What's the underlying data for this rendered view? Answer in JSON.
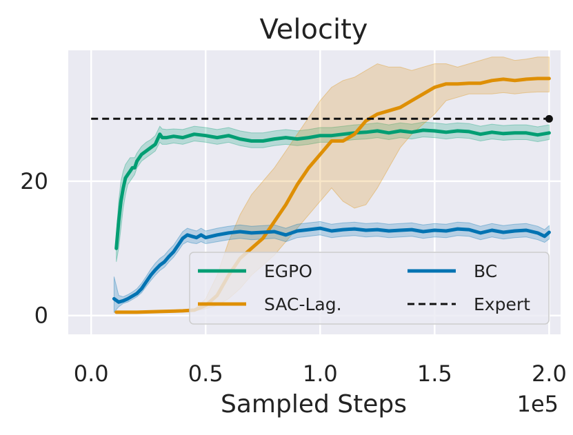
{
  "chart_data": {
    "type": "line",
    "title": "Velocity",
    "xlabel": "Sampled Steps",
    "ylabel": "",
    "x_offset_label": "1e5",
    "xlim": [
      -0.1,
      2.05
    ],
    "ylim": [
      -2.8,
      39.5
    ],
    "xticks": [
      0.0,
      0.5,
      1.0,
      1.5,
      2.0
    ],
    "xtick_labels": [
      "0.0",
      "0.5",
      "1.0",
      "1.5",
      "2.0"
    ],
    "yticks": [
      0,
      20
    ],
    "ytick_labels": [
      "0",
      "20"
    ],
    "grid": true,
    "legend": {
      "position": "lower-right",
      "columns": 2
    },
    "series": [
      {
        "name": "EGPO",
        "color": "#029e73",
        "style": "solid",
        "x": [
          0.11,
          0.12,
          0.13,
          0.14,
          0.15,
          0.16,
          0.17,
          0.18,
          0.19,
          0.2,
          0.22,
          0.24,
          0.26,
          0.28,
          0.3,
          0.31,
          0.33,
          0.36,
          0.4,
          0.45,
          0.5,
          0.55,
          0.6,
          0.65,
          0.7,
          0.75,
          0.8,
          0.85,
          0.9,
          0.95,
          1.0,
          1.05,
          1.1,
          1.15,
          1.2,
          1.25,
          1.3,
          1.35,
          1.4,
          1.45,
          1.5,
          1.55,
          1.6,
          1.65,
          1.7,
          1.75,
          1.8,
          1.85,
          1.9,
          1.95,
          2.0
        ],
        "y": [
          10,
          14,
          17,
          19,
          20.5,
          21,
          21.5,
          22,
          22,
          23,
          24,
          24.5,
          25,
          25.5,
          27,
          26.5,
          26.5,
          26.7,
          26.5,
          27,
          26.8,
          26.5,
          26.8,
          26.3,
          26,
          26,
          26.3,
          26.5,
          26.3,
          26.5,
          26.8,
          26.8,
          27,
          27.2,
          27.3,
          27.5,
          27.2,
          27.5,
          27.3,
          27.6,
          27.5,
          27.3,
          27.5,
          27.4,
          27,
          27.3,
          27.1,
          27.2,
          27.2,
          26.9,
          27.2
        ],
        "lower": [
          8,
          10,
          13,
          16,
          18,
          19.5,
          20,
          20.5,
          21,
          22,
          23,
          23.5,
          24,
          24.5,
          25.8,
          25.5,
          25.5,
          25.7,
          25.5,
          26,
          25.8,
          25.5,
          25.8,
          25.3,
          25,
          25,
          25.3,
          25.5,
          25.3,
          25.5,
          25.8,
          25.8,
          26,
          26.2,
          26.3,
          26.5,
          26.2,
          26.5,
          26.3,
          26.6,
          26.5,
          26.3,
          26.5,
          26.4,
          26,
          26.3,
          26.1,
          26.2,
          26.2,
          25.9,
          26.2
        ],
        "upper": [
          12,
          17,
          20,
          21.5,
          22.5,
          23,
          23.5,
          23.5,
          23.5,
          24.2,
          25.2,
          25.8,
          26.2,
          26.8,
          28.2,
          27.8,
          27.7,
          27.8,
          27.7,
          28.2,
          28,
          27.7,
          28,
          27.5,
          27.2,
          27.2,
          27.5,
          27.7,
          27.5,
          27.7,
          28,
          28,
          28.2,
          28.4,
          28.5,
          28.7,
          28.4,
          28.7,
          28.5,
          28.8,
          28.7,
          28.5,
          28.7,
          28.6,
          28.2,
          28.5,
          28.3,
          28.4,
          28.4,
          28.1,
          28.4
        ]
      },
      {
        "name": "SAC-Lag.",
        "color": "#de8f05",
        "style": "solid",
        "x": [
          0.11,
          0.2,
          0.3,
          0.4,
          0.45,
          0.5,
          0.55,
          0.6,
          0.65,
          0.7,
          0.75,
          0.8,
          0.85,
          0.9,
          0.95,
          1.0,
          1.05,
          1.1,
          1.15,
          1.2,
          1.25,
          1.3,
          1.35,
          1.4,
          1.45,
          1.5,
          1.55,
          1.6,
          1.65,
          1.7,
          1.75,
          1.8,
          1.85,
          1.9,
          1.95,
          2.0
        ],
        "y": [
          0.5,
          0.5,
          0.6,
          0.7,
          0.8,
          1.5,
          3,
          6,
          8.5,
          10,
          11.5,
          14,
          16.5,
          19.5,
          22,
          24,
          26,
          26,
          27,
          29,
          30,
          30.5,
          31,
          32,
          33,
          34,
          34.5,
          34.5,
          34.6,
          34.6,
          35,
          35.2,
          35,
          35.2,
          35.3,
          35.3
        ],
        "lower": [
          0.4,
          0.4,
          0.5,
          0.6,
          0.7,
          1,
          1.5,
          2.5,
          4,
          6,
          7.5,
          9,
          11,
          13,
          15,
          17,
          19,
          17,
          16,
          16.5,
          19,
          22,
          25,
          27,
          28.5,
          30,
          32,
          32.5,
          33,
          33,
          33,
          33.2,
          33,
          33.2,
          33.3,
          33.3
        ],
        "upper": [
          0.6,
          0.6,
          0.7,
          0.8,
          0.9,
          2.5,
          6,
          11,
          15,
          18,
          20,
          22,
          24.5,
          27,
          29.5,
          32,
          34,
          35,
          35.5,
          36.5,
          37.5,
          37,
          37,
          36.5,
          37,
          37.5,
          37.5,
          37,
          37.5,
          38,
          38.5,
          38.5,
          38,
          38.2,
          38.5,
          38.5
        ]
      },
      {
        "name": "BC",
        "color": "#0173b2",
        "style": "solid",
        "x": [
          0.1,
          0.12,
          0.14,
          0.16,
          0.18,
          0.2,
          0.22,
          0.24,
          0.26,
          0.28,
          0.3,
          0.32,
          0.34,
          0.36,
          0.38,
          0.4,
          0.42,
          0.44,
          0.46,
          0.48,
          0.5,
          0.55,
          0.6,
          0.65,
          0.7,
          0.75,
          0.8,
          0.85,
          0.9,
          0.95,
          1.0,
          1.05,
          1.1,
          1.15,
          1.2,
          1.25,
          1.3,
          1.35,
          1.4,
          1.45,
          1.5,
          1.55,
          1.6,
          1.65,
          1.7,
          1.75,
          1.8,
          1.85,
          1.9,
          1.95,
          1.98,
          2.0
        ],
        "y": [
          2.5,
          2.0,
          2.2,
          2.5,
          2.9,
          3.3,
          4.0,
          5.0,
          6.0,
          6.8,
          7.5,
          8.0,
          8.8,
          9.5,
          10.5,
          11.5,
          12.0,
          11.8,
          11.6,
          12.0,
          11.6,
          12.0,
          12.3,
          12.5,
          12.3,
          12.4,
          12.5,
          12.0,
          12.6,
          12.8,
          13.0,
          12.6,
          12.8,
          12.9,
          12.7,
          12.8,
          12.6,
          12.7,
          12.8,
          12.5,
          12.7,
          12.6,
          12.9,
          12.8,
          12.3,
          12.7,
          12.4,
          12.6,
          12.7,
          12.3,
          11.8,
          12.4
        ],
        "lower": [
          0.5,
          1.3,
          1.8,
          2.0,
          2.4,
          2.8,
          3.4,
          4.3,
          5.2,
          6.0,
          6.7,
          7.2,
          8.0,
          8.7,
          9.6,
          10.6,
          11.0,
          10.8,
          10.7,
          11.0,
          10.7,
          11.0,
          11.3,
          11.5,
          11.3,
          11.4,
          11.5,
          11.0,
          11.6,
          11.8,
          12.0,
          11.6,
          11.8,
          11.9,
          11.7,
          11.8,
          11.6,
          11.7,
          11.8,
          11.5,
          11.7,
          11.6,
          11.9,
          11.8,
          11.3,
          11.7,
          11.4,
          11.6,
          11.7,
          11.3,
          10.9,
          11.4
        ],
        "upper": [
          5.8,
          3.0,
          2.8,
          3.1,
          3.5,
          4.0,
          4.8,
          5.8,
          6.9,
          7.8,
          8.5,
          9.0,
          9.8,
          10.5,
          11.5,
          12.5,
          13.0,
          12.8,
          12.6,
          13.0,
          12.6,
          13.0,
          13.3,
          13.5,
          13.3,
          13.4,
          13.5,
          13.0,
          13.6,
          13.8,
          14.0,
          13.6,
          13.8,
          13.9,
          13.7,
          13.8,
          13.6,
          13.7,
          13.8,
          13.5,
          13.7,
          13.6,
          13.9,
          13.8,
          13.3,
          13.7,
          13.4,
          13.6,
          13.7,
          13.3,
          12.8,
          13.4
        ]
      },
      {
        "name": "Expert",
        "color": "#111111",
        "style": "dashed",
        "x": [
          0.0,
          2.0
        ],
        "y": [
          29.3,
          29.3
        ],
        "end_marker": true
      }
    ]
  }
}
